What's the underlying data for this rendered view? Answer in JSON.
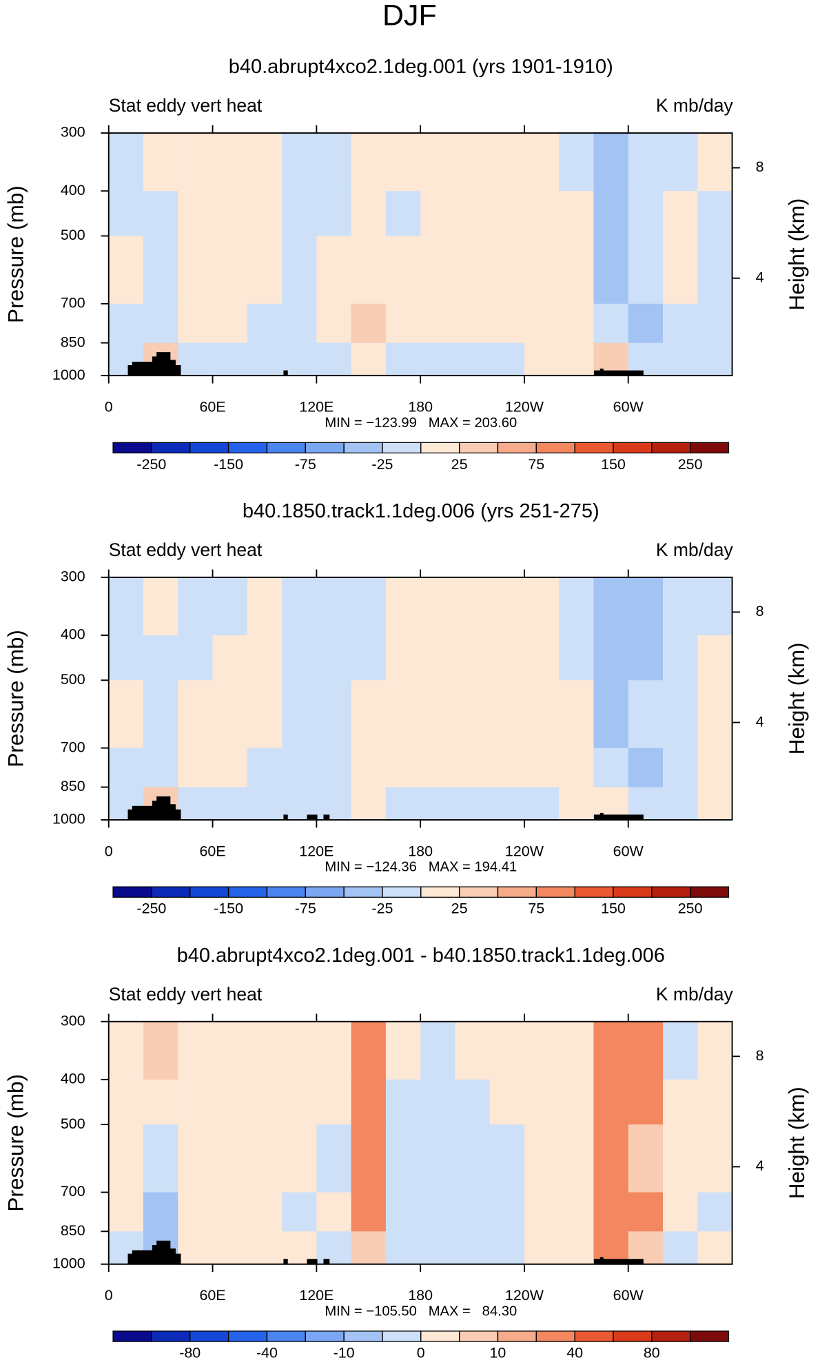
{
  "suptitle": "DJF",
  "chart_data": [
    {
      "type": "contour",
      "title": "b40.abrupt4xco2.1deg.001 (yrs 1901-1910)",
      "left_label": "Stat eddy vert heat",
      "right_label": "K mb/day",
      "stats": "MIN = −123.99   MAX = 203.60",
      "ylabel": "Pressure (mb)",
      "y2label": "Height (km)",
      "xlim": [
        0,
        360
      ],
      "xticks": [
        0,
        {
          "value": 60,
          "label": "60E"
        },
        {
          "value": 120,
          "label": "120E"
        },
        180,
        {
          "value": 240,
          "label": "120W"
        },
        {
          "value": 300,
          "label": "60W"
        }
      ],
      "ylim": [
        1000,
        300
      ],
      "yticks": [
        300,
        400,
        500,
        700,
        850,
        1000
      ],
      "log_y": true,
      "y2lim": [
        0.47,
        9.26
      ],
      "y2ticks": [
        4,
        8
      ],
      "x": [
        10,
        30,
        50,
        70,
        90,
        110,
        130,
        150,
        170,
        190,
        210,
        230,
        250,
        270,
        290,
        310,
        330,
        350
      ],
      "z": [
        [
          -10,
          10,
          10,
          10,
          10,
          -10,
          -10,
          10,
          10,
          10,
          10,
          10,
          10,
          -10,
          -30,
          -10,
          -10,
          10
        ],
        [
          -10,
          -10,
          10,
          10,
          10,
          -10,
          -10,
          10,
          -10,
          10,
          10,
          10,
          10,
          10,
          -30,
          -10,
          10,
          -10
        ],
        [
          10,
          -10,
          10,
          10,
          10,
          -10,
          10,
          10,
          10,
          10,
          10,
          10,
          10,
          10,
          -30,
          -10,
          10,
          -10
        ],
        [
          -10,
          -10,
          10,
          10,
          -10,
          -10,
          10,
          30,
          10,
          10,
          10,
          10,
          10,
          10,
          -10,
          -30,
          -10,
          -10
        ],
        [
          -10,
          30,
          -10,
          -10,
          -10,
          -10,
          -10,
          10,
          -10,
          -10,
          -10,
          -10,
          10,
          10,
          30,
          -10,
          -10,
          -10
        ]
      ],
      "colorbar": {
        "colors": [
          "#0a0a8c",
          "#0b2bb8",
          "#1547d6",
          "#2563eb",
          "#4a85f0",
          "#7aa6f2",
          "#a3c3f5",
          "#cde0f7",
          "#fde7d5",
          "#f8cdb4",
          "#f6ab8a",
          "#f28760",
          "#ea5a32",
          "#d93a1a",
          "#b5200e",
          "#7e0b0b"
        ],
        "levels": [
          -250,
          -200,
          -150,
          -100,
          -75,
          -50,
          -25,
          0,
          25,
          50,
          75,
          100,
          150,
          200,
          250
        ],
        "ticks": [
          -250,
          -150,
          -75,
          -25,
          25,
          75,
          150,
          250
        ]
      }
    },
    {
      "type": "contour",
      "title": "b40.1850.track1.1deg.006 (yrs 251-275)",
      "left_label": "Stat eddy vert heat",
      "right_label": "K mb/day",
      "stats": "MIN = −124.36   MAX = 194.41",
      "ylabel": "Pressure (mb)",
      "y2label": "Height (km)",
      "xlim": [
        0,
        360
      ],
      "xticks": [
        0,
        {
          "value": 60,
          "label": "60E"
        },
        {
          "value": 120,
          "label": "120E"
        },
        180,
        {
          "value": 240,
          "label": "120W"
        },
        {
          "value": 300,
          "label": "60W"
        }
      ],
      "ylim": [
        1000,
        300
      ],
      "yticks": [
        300,
        400,
        500,
        700,
        850,
        1000
      ],
      "log_y": true,
      "y2lim": [
        0.47,
        9.26
      ],
      "y2ticks": [
        4,
        8
      ],
      "x": [
        10,
        30,
        50,
        70,
        90,
        110,
        130,
        150,
        170,
        190,
        210,
        230,
        250,
        270,
        290,
        310,
        330,
        350
      ],
      "z": [
        [
          -10,
          10,
          -10,
          -10,
          10,
          -10,
          -10,
          -10,
          10,
          10,
          10,
          10,
          10,
          -10,
          -30,
          -30,
          -10,
          -10
        ],
        [
          -10,
          -10,
          -10,
          10,
          10,
          -10,
          -10,
          -10,
          10,
          10,
          10,
          10,
          10,
          -10,
          -30,
          -30,
          -10,
          10
        ],
        [
          10,
          -10,
          10,
          10,
          10,
          -10,
          -10,
          10,
          10,
          10,
          10,
          10,
          10,
          10,
          -30,
          -10,
          -10,
          10
        ],
        [
          -10,
          -10,
          10,
          10,
          -10,
          -10,
          -10,
          10,
          10,
          10,
          10,
          10,
          10,
          10,
          -10,
          -30,
          -10,
          10
        ],
        [
          -10,
          30,
          -10,
          -10,
          -10,
          -10,
          -10,
          10,
          -10,
          -10,
          -10,
          -10,
          -10,
          10,
          10,
          -10,
          -10,
          10
        ]
      ],
      "colorbar": {
        "colors": [
          "#0a0a8c",
          "#0b2bb8",
          "#1547d6",
          "#2563eb",
          "#4a85f0",
          "#7aa6f2",
          "#a3c3f5",
          "#cde0f7",
          "#fde7d5",
          "#f8cdb4",
          "#f6ab8a",
          "#f28760",
          "#ea5a32",
          "#d93a1a",
          "#b5200e",
          "#7e0b0b"
        ],
        "levels": [
          -250,
          -200,
          -150,
          -100,
          -75,
          -50,
          -25,
          0,
          25,
          50,
          75,
          100,
          150,
          200,
          250
        ],
        "ticks": [
          -250,
          -150,
          -75,
          -25,
          25,
          75,
          150,
          250
        ]
      }
    },
    {
      "type": "contour",
      "title": "b40.abrupt4xco2.1deg.001 - b40.1850.track1.1deg.006",
      "left_label": "Stat eddy vert heat",
      "right_label": "K mb/day",
      "stats": "MIN = −105.50   MAX =   84.30",
      "ylabel": "Pressure (mb)",
      "y2label": "Height (km)",
      "xlim": [
        0,
        360
      ],
      "xticks": [
        0,
        {
          "value": 60,
          "label": "60E"
        },
        {
          "value": 120,
          "label": "120E"
        },
        180,
        {
          "value": 240,
          "label": "120W"
        },
        {
          "value": 300,
          "label": "60W"
        }
      ],
      "ylim": [
        1000,
        300
      ],
      "yticks": [
        300,
        400,
        500,
        700,
        850,
        1000
      ],
      "log_y": true,
      "y2lim": [
        0.47,
        9.26
      ],
      "y2ticks": [
        4,
        8
      ],
      "x": [
        10,
        30,
        50,
        70,
        90,
        110,
        130,
        150,
        170,
        190,
        210,
        230,
        250,
        270,
        290,
        310,
        330,
        350
      ],
      "z": [
        [
          3,
          7,
          3,
          3,
          3,
          3,
          3,
          30,
          3,
          -3,
          3,
          3,
          3,
          3,
          30,
          30,
          -3,
          3
        ],
        [
          3,
          3,
          3,
          3,
          3,
          3,
          3,
          30,
          -3,
          -3,
          -3,
          3,
          3,
          3,
          30,
          30,
          3,
          3
        ],
        [
          3,
          -3,
          3,
          3,
          3,
          3,
          -3,
          30,
          -3,
          -3,
          -3,
          -3,
          3,
          3,
          30,
          7,
          3,
          3
        ],
        [
          3,
          -7,
          3,
          3,
          3,
          -3,
          3,
          30,
          -3,
          -3,
          -3,
          -3,
          3,
          3,
          30,
          30,
          3,
          -3
        ],
        [
          -3,
          -7,
          3,
          3,
          3,
          3,
          -3,
          7,
          -3,
          -3,
          -3,
          -3,
          3,
          3,
          30,
          7,
          -3,
          3
        ]
      ],
      "colorbar": {
        "colors": [
          "#0a0a8c",
          "#0b2bb8",
          "#1547d6",
          "#2563eb",
          "#4a85f0",
          "#7aa6f2",
          "#a3c3f5",
          "#cde0f7",
          "#fde7d5",
          "#f8cdb4",
          "#f6ab8a",
          "#f28760",
          "#ea5a32",
          "#d93a1a",
          "#b5200e",
          "#7e0b0b"
        ],
        "levels": [
          -100,
          -80,
          -60,
          -40,
          -20,
          -10,
          -5,
          0,
          5,
          10,
          20,
          40,
          60,
          80,
          100
        ],
        "ticks": [
          -80,
          -40,
          -10,
          0,
          10,
          40,
          80
        ]
      }
    }
  ]
}
